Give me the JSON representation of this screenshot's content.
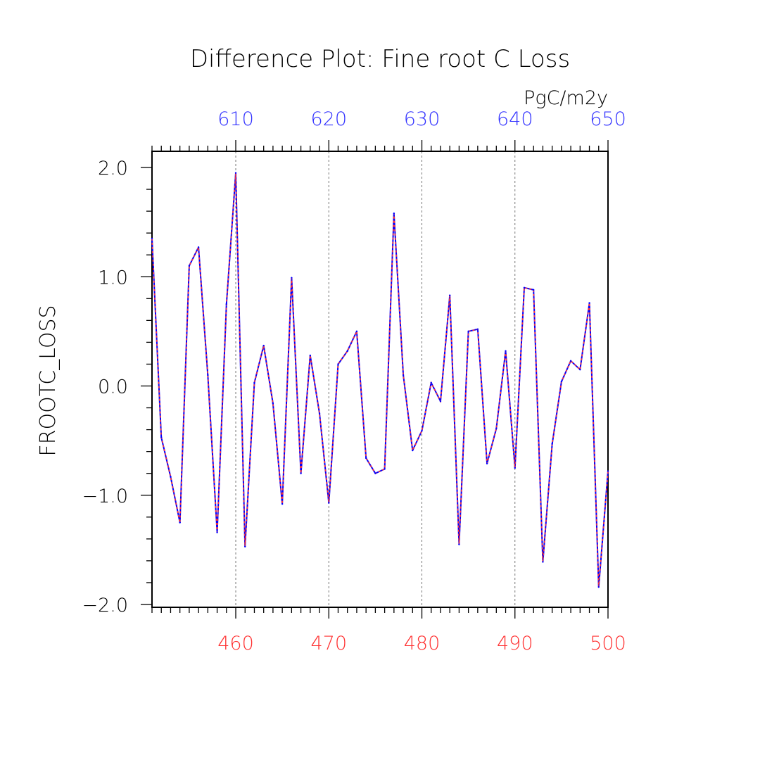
{
  "chart_data": {
    "type": "line",
    "title": "Difference Plot: Fine root C Loss",
    "units": "PgC/m2y",
    "ylabel": "FROOTC_LOSS",
    "ylim": [
      -2.0,
      2.0
    ],
    "yticks": [
      "2.0",
      "1.0",
      "0.0",
      "−1.0",
      "−2.0"
    ],
    "ytick_values": [
      2.0,
      1.0,
      0.0,
      -1.0,
      -2.0
    ],
    "bottom_axis": {
      "range": [
        451,
        500
      ],
      "ticks": [
        460,
        470,
        480,
        490,
        500
      ],
      "tick_labels": [
        "460",
        "470",
        "480",
        "490",
        "500"
      ],
      "color": "#ff3333"
    },
    "top_axis": {
      "range": [
        601,
        650
      ],
      "ticks": [
        610,
        620,
        630,
        640,
        650
      ],
      "tick_labels": [
        "610",
        "620",
        "630",
        "640",
        "650"
      ],
      "color": "#3333ff"
    },
    "gridlines_x": [
      460,
      470,
      480,
      490
    ],
    "x": [
      451,
      452,
      453,
      454,
      455,
      456,
      457,
      458,
      459,
      460,
      461,
      462,
      463,
      464,
      465,
      466,
      467,
      468,
      469,
      470,
      471,
      472,
      473,
      474,
      475,
      476,
      477,
      478,
      479,
      480,
      481,
      482,
      483,
      484,
      485,
      486,
      487,
      488,
      489,
      490,
      491,
      492,
      493,
      494,
      495,
      496,
      497,
      498,
      499,
      500
    ],
    "series": [
      {
        "name": "difference",
        "color": "#0000ff",
        "dash_color": "#ff3333",
        "values": [
          1.35,
          -0.47,
          -0.83,
          -1.25,
          1.1,
          1.27,
          0.1,
          -1.34,
          0.75,
          1.95,
          -1.47,
          0.03,
          0.37,
          -0.16,
          -1.08,
          0.99,
          -0.8,
          0.28,
          -0.25,
          -1.07,
          0.2,
          0.32,
          0.5,
          -0.66,
          -0.8,
          -0.76,
          1.58,
          0.1,
          -0.59,
          -0.41,
          0.03,
          -0.14,
          0.83,
          -1.45,
          0.5,
          0.52,
          -0.71,
          -0.39,
          0.32,
          -0.75,
          0.9,
          0.88,
          -1.61,
          -0.53,
          0.04,
          0.23,
          0.15,
          0.76,
          -1.84,
          -0.78
        ]
      }
    ]
  }
}
